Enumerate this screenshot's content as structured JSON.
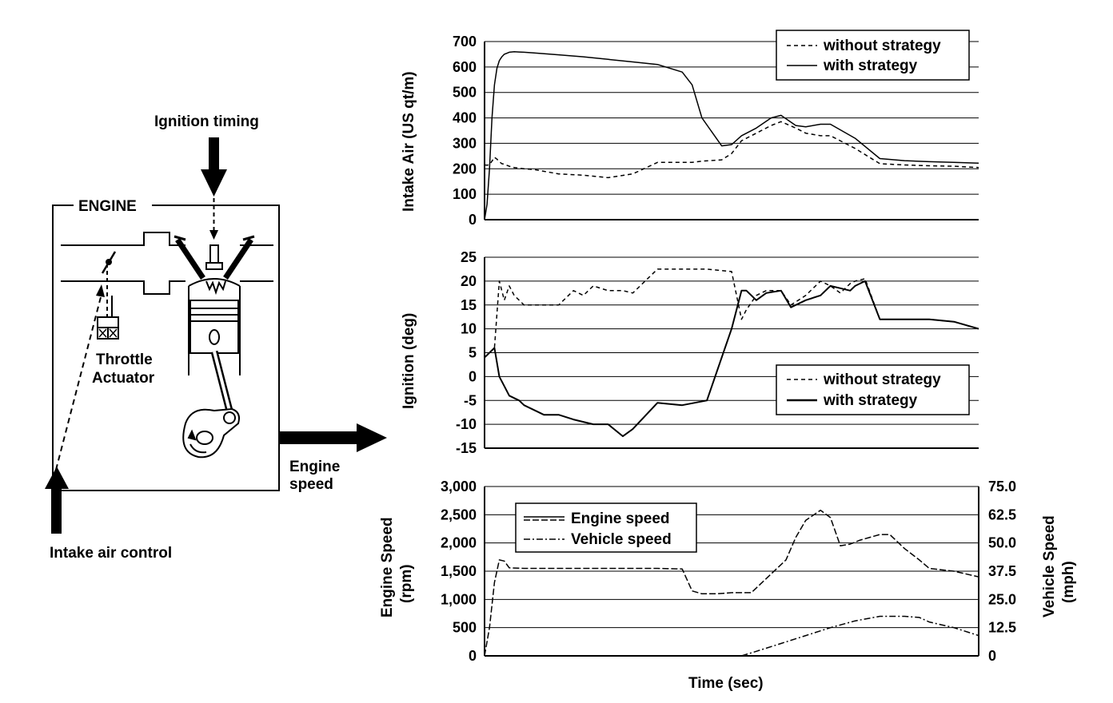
{
  "diagram": {
    "engine_label": "ENGINE",
    "ignition_timing_label": "Ignition timing",
    "throttle_actuator_label": [
      "Throttle",
      "Actuator"
    ],
    "engine_speed_label": [
      "Engine",
      "speed"
    ],
    "intake_air_control_label": "Intake air control"
  },
  "chart_data": [
    {
      "type": "line",
      "title": "",
      "xlabel": "",
      "ylabel": "Intake Air (US qt/m)",
      "ylim": [
        0,
        700
      ],
      "yticks": [
        "0",
        "100",
        "200",
        "300",
        "400",
        "500",
        "600",
        "700"
      ],
      "grid": true,
      "legend": "top-right",
      "x": [
        0,
        0.5,
        1,
        1.5,
        2,
        2.5,
        3,
        3.5,
        4,
        5,
        6,
        7,
        8,
        10,
        15,
        20,
        25,
        30,
        35,
        40,
        42,
        44,
        48,
        50,
        52,
        55,
        58,
        60,
        63,
        65,
        68,
        70,
        75,
        80,
        85,
        90,
        95,
        100
      ],
      "series": [
        {
          "name": "without strategy",
          "values": [
            215,
            214,
            216,
            230,
            245,
            238,
            228,
            220,
            218,
            210,
            205,
            202,
            200,
            197,
            180,
            175,
            165,
            180,
            225,
            225,
            225,
            230,
            235,
            260,
            310,
            340,
            370,
            385,
            360,
            340,
            330,
            330,
            280,
            220,
            215,
            212,
            210,
            205
          ]
        },
        {
          "name": "with strategy",
          "values": [
            0,
            60,
            200,
            400,
            530,
            595,
            625,
            640,
            650,
            658,
            660,
            659,
            658,
            655,
            648,
            640,
            630,
            620,
            610,
            580,
            530,
            400,
            290,
            295,
            330,
            360,
            400,
            410,
            370,
            365,
            375,
            375,
            320,
            240,
            232,
            228,
            225,
            222
          ]
        }
      ]
    },
    {
      "type": "line",
      "title": "",
      "xlabel": "",
      "ylabel": "Ignition (deg)",
      "ylim": [
        -15,
        25
      ],
      "yticks": [
        "-15",
        "-10",
        "-5",
        "0",
        "5",
        "10",
        "15",
        "20",
        "25"
      ],
      "grid": true,
      "legend": "right",
      "x": [
        0,
        1,
        2,
        3,
        4,
        5,
        6,
        7,
        8,
        10,
        12,
        15,
        18,
        20,
        22,
        25,
        28,
        30,
        35,
        40,
        45,
        50,
        52,
        53,
        55,
        57,
        60,
        62,
        65,
        68,
        70,
        72,
        74,
        75,
        77,
        80,
        85,
        90,
        95,
        100
      ],
      "series": [
        {
          "name": "without strategy",
          "values": [
            4,
            5,
            6,
            20,
            16,
            19,
            17,
            16,
            15,
            15,
            15,
            15,
            18,
            17,
            19,
            18,
            18,
            17.5,
            22.5,
            22.5,
            22.5,
            22,
            12,
            14,
            17,
            18,
            18,
            15,
            17,
            20,
            19,
            17.5,
            19.5,
            20,
            20.5,
            12,
            12,
            12,
            11.5,
            10
          ]
        },
        {
          "name": "with strategy",
          "values": [
            4,
            5,
            6,
            0,
            -2,
            -4,
            -4.5,
            -5,
            -6,
            -7,
            -8,
            -8,
            -9,
            -9.5,
            -10,
            -10,
            -12.5,
            -11,
            -5.5,
            -6,
            -5,
            10,
            18,
            18,
            16,
            17.5,
            18,
            14.5,
            16,
            17,
            19,
            18.5,
            18,
            19,
            20,
            12,
            12,
            12,
            11.5,
            10
          ]
        }
      ]
    },
    {
      "type": "line",
      "title": "",
      "xlabel": "Time (sec)",
      "ylabel": "Engine Speed (rpm)",
      "y2label": "Vehicle Speed (mph)",
      "ylim": [
        0,
        3000
      ],
      "y2lim": [
        0,
        75
      ],
      "yticks": [
        "0",
        "500",
        "1,000",
        "1,500",
        "2,000",
        "2,500",
        "3,000"
      ],
      "y2ticks": [
        "0",
        "12.5",
        "25.0",
        "37.5",
        "50.0",
        "62.5",
        "75.0"
      ],
      "grid": true,
      "legend": "top-left",
      "series": [
        {
          "name": "Engine speed",
          "axis": "left",
          "x": [
            0,
            1,
            2,
            3,
            4,
            5,
            8,
            20,
            35,
            40,
            42,
            44,
            47,
            50,
            54,
            58,
            61,
            63,
            65,
            68,
            70,
            72,
            74,
            76,
            78,
            80,
            82,
            85,
            88,
            90,
            93,
            95,
            100
          ],
          "values": [
            0,
            500,
            1300,
            1700,
            1680,
            1560,
            1550,
            1550,
            1550,
            1540,
            1150,
            1100,
            1100,
            1120,
            1120,
            1450,
            1700,
            2100,
            2400,
            2580,
            2450,
            1950,
            1980,
            2050,
            2100,
            2150,
            2150,
            1900,
            1700,
            1550,
            1520,
            1500,
            1400
          ]
        },
        {
          "name": "Vehicle speed",
          "axis": "right",
          "x": [
            52,
            55,
            60,
            65,
            70,
            75,
            80,
            82,
            85,
            88,
            90,
            95,
            100
          ],
          "values": [
            0,
            2,
            5.5,
            9,
            12.5,
            15.5,
            17.5,
            17.5,
            17.5,
            17,
            15,
            12.5,
            9
          ]
        }
      ]
    }
  ]
}
